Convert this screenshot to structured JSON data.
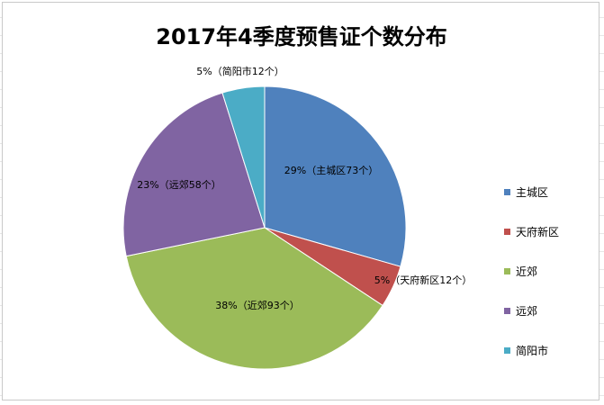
{
  "chart_data": {
    "type": "pie",
    "title": "2017年4季度预售证个数分布",
    "slices": [
      {
        "name": "主城区",
        "value": 73,
        "percent": "29%",
        "label": "29%（主城区73个）",
        "color": "#4F81BD"
      },
      {
        "name": "天府新区",
        "value": 12,
        "percent": "5%",
        "label": "5%（天府新区12个）",
        "color": "#C0504D"
      },
      {
        "name": "近郊",
        "value": 93,
        "percent": "38%",
        "label": "38%（近郊93个）",
        "color": "#9BBB59"
      },
      {
        "name": "远郊",
        "value": 58,
        "percent": "23%",
        "label": "23%（远郊58个）",
        "color": "#8064A2"
      },
      {
        "name": "简阳市",
        "value": 12,
        "percent": "5%",
        "label": "5%（简阳市12个）",
        "color": "#4BACC6"
      }
    ],
    "legend": [
      "主城区",
      "天府新区",
      "近郊",
      "远郊",
      "简阳市"
    ],
    "legend_position": "right"
  }
}
